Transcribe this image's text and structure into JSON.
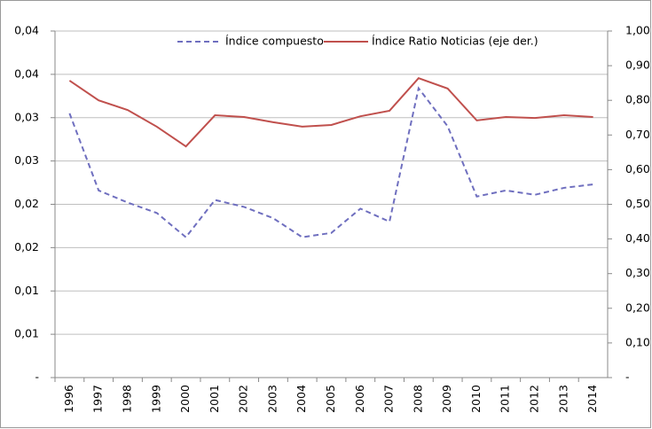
{
  "chart_data": {
    "type": "line",
    "categories": [
      "1996",
      "1997",
      "1998",
      "1999",
      "2000",
      "2001",
      "2002",
      "2003",
      "2004",
      "2005",
      "2006",
      "2007",
      "2008",
      "2009",
      "2010",
      "2011",
      "2012",
      "2013",
      "2014"
    ],
    "series": [
      {
        "name": "Índice compuesto",
        "color": "#6f6fbf",
        "dashed": true,
        "values": [
          0.0305,
          0.0216,
          0.0202,
          0.019,
          0.0162,
          0.0205,
          0.0197,
          0.0184,
          0.0162,
          0.0167,
          0.0195,
          0.018,
          0.0334,
          0.029,
          0.0209,
          0.0216,
          0.0211,
          0.0219,
          0.0223
        ]
      },
      {
        "name": "Índice Ratio Noticias (eje der.)",
        "color": "#c0504d",
        "axis": "y2",
        "values": [
          0.857,
          0.8,
          0.772,
          0.724,
          0.667,
          0.757,
          0.752,
          0.737,
          0.724,
          0.729,
          0.754,
          0.77,
          0.864,
          0.834,
          0.742,
          0.752,
          0.749,
          0.757,
          0.752
        ]
      }
    ],
    "ylim": [
      0,
      0.04
    ],
    "yticks": [
      {
        "value": 0,
        "label": "-"
      },
      {
        "value": 0.005,
        "label": "0,01"
      },
      {
        "value": 0.01,
        "label": "0,01"
      },
      {
        "value": 0.015,
        "label": "0,02"
      },
      {
        "value": 0.02,
        "label": "0,02"
      },
      {
        "value": 0.025,
        "label": "0,03"
      },
      {
        "value": 0.03,
        "label": "0,03"
      },
      {
        "value": 0.035,
        "label": "0,04"
      },
      {
        "value": 0.04,
        "label": "0,04"
      }
    ],
    "y2lim": [
      0,
      1
    ],
    "y2ticks": [
      {
        "value": 0,
        "label": "-"
      },
      {
        "value": 0.1,
        "label": "0,10"
      },
      {
        "value": 0.2,
        "label": "0,20"
      },
      {
        "value": 0.3,
        "label": "0,30"
      },
      {
        "value": 0.4,
        "label": "0,40"
      },
      {
        "value": 0.5,
        "label": "0,50"
      },
      {
        "value": 0.6,
        "label": "0,60"
      },
      {
        "value": 0.7,
        "label": "0,70"
      },
      {
        "value": 0.8,
        "label": "0,80"
      },
      {
        "value": 0.9,
        "label": "0,90"
      },
      {
        "value": 1,
        "label": "1,00"
      }
    ],
    "grid": true,
    "legend": "top"
  }
}
